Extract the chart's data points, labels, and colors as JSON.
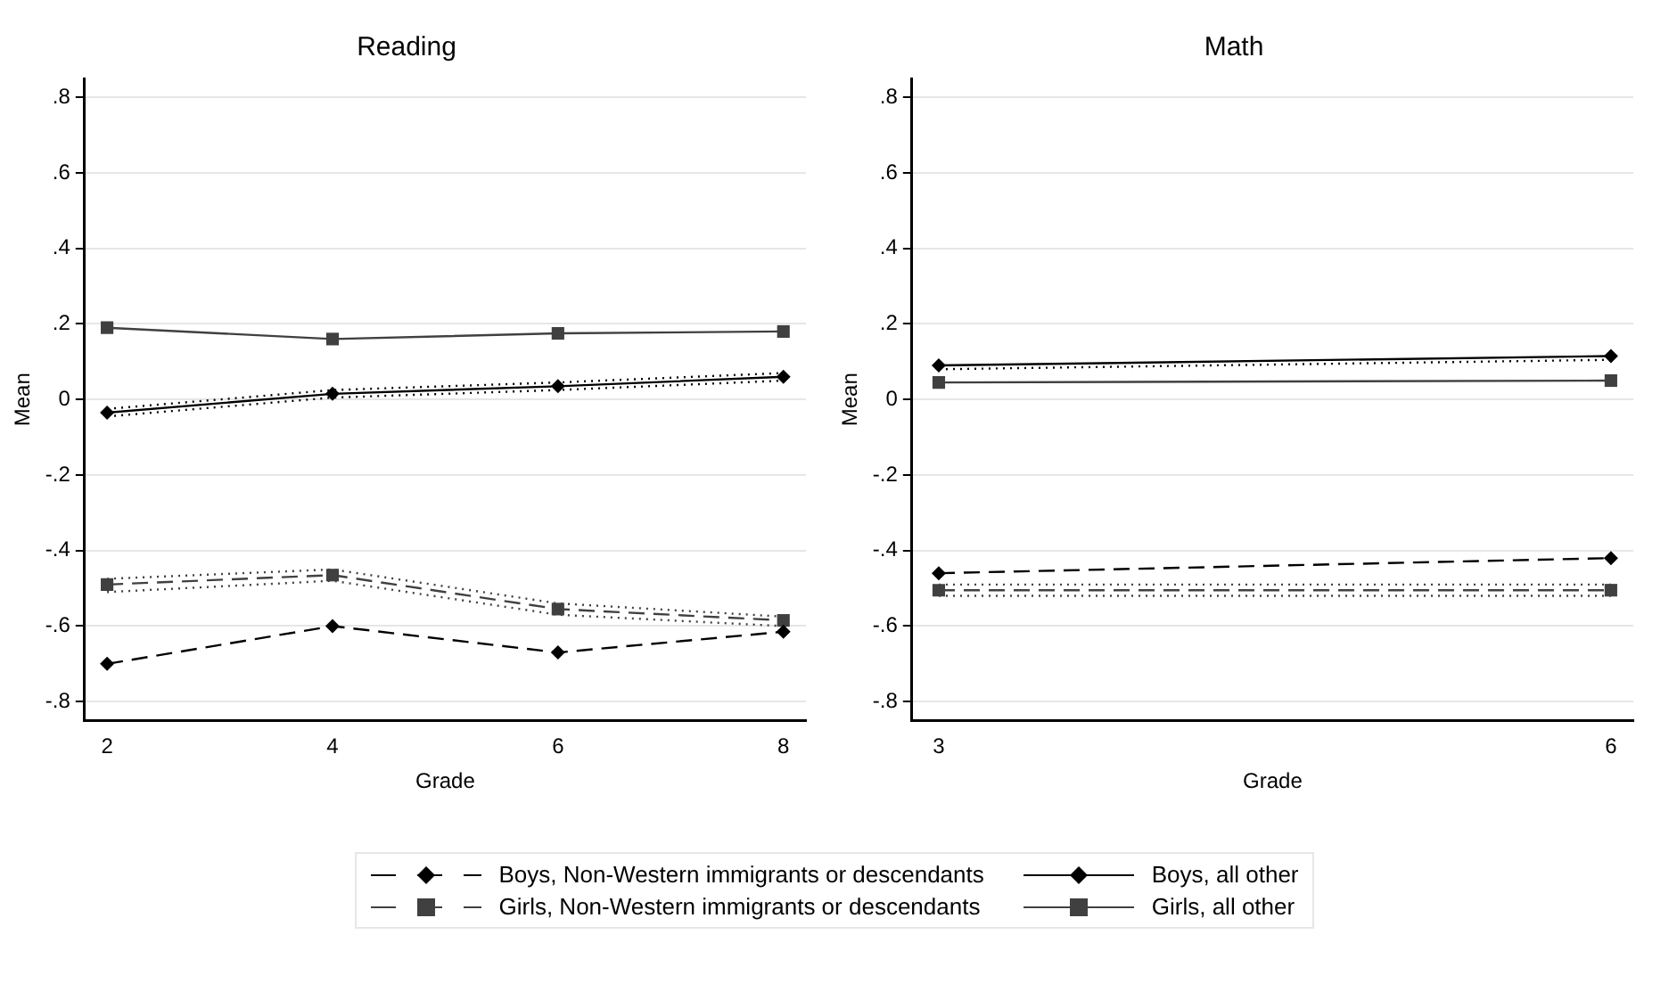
{
  "chart_data": [
    {
      "type": "line",
      "title": "Reading",
      "xlabel": "Grade",
      "ylabel": "Mean",
      "x": [
        2,
        4,
        6,
        8
      ],
      "xlim": [
        1.8,
        8.2
      ],
      "xticks": [
        2,
        4,
        6,
        8
      ],
      "ylim": [
        -0.85,
        0.85
      ],
      "yticks": [
        {
          "value": -0.8,
          "label": "-.8"
        },
        {
          "value": -0.6,
          "label": "-.6"
        },
        {
          "value": -0.4,
          "label": "-.4"
        },
        {
          "value": -0.2,
          "label": "-.2"
        },
        0,
        {
          "value": 0.2,
          "label": ".2"
        },
        {
          "value": 0.4,
          "label": ".4"
        },
        {
          "value": 0.6,
          "label": ".6"
        },
        {
          "value": 0.8,
          "label": ".8"
        }
      ],
      "grid": "y",
      "legend": "bottom",
      "series": [
        {
          "name": "Boys, Non-Western immigrants or descendants",
          "color": "#000000",
          "marker": "diamond",
          "line_style": "dashed",
          "values": [
            -0.7,
            -0.6,
            -0.67,
            -0.615
          ]
        },
        {
          "name": "Girls, Non-Western immigrants or descendants",
          "color": "#404040",
          "marker": "square",
          "line_style": "dashed",
          "values": [
            -0.49,
            -0.465,
            -0.555,
            -0.585
          ]
        },
        {
          "name": "Boys, all other",
          "color": "#000000",
          "marker": "diamond",
          "line_style": "solid",
          "values": [
            -0.035,
            0.015,
            0.035,
            0.06
          ]
        },
        {
          "name": "Girls, all other",
          "color": "#404040",
          "marker": "square",
          "line_style": "solid",
          "values": [
            0.19,
            0.16,
            0.175,
            0.18
          ]
        },
        {
          "color": "#404040",
          "marker": "none",
          "line_style": "dotted",
          "values": [
            -0.51,
            -0.48,
            -0.57,
            -0.6
          ]
        },
        {
          "color": "#404040",
          "marker": "none",
          "line_style": "dotted",
          "values": [
            -0.475,
            -0.45,
            -0.54,
            -0.575
          ]
        },
        {
          "color": "#000000",
          "marker": "none",
          "line_style": "dotted",
          "values": [
            -0.045,
            0.005,
            0.025,
            0.05
          ]
        },
        {
          "color": "#000000",
          "marker": "none",
          "line_style": "dotted",
          "values": [
            -0.025,
            0.025,
            0.045,
            0.07
          ]
        }
      ]
    },
    {
      "type": "line",
      "title": "Math",
      "xlabel": "Grade",
      "ylabel": "Mean",
      "x": [
        3,
        6
      ],
      "xlim": [
        2.88,
        6.1
      ],
      "xticks": [
        3,
        6
      ],
      "ylim": [
        -0.85,
        0.85
      ],
      "yticks": [
        {
          "value": -0.8,
          "label": "-.8"
        },
        {
          "value": -0.6,
          "label": "-.6"
        },
        {
          "value": -0.4,
          "label": "-.4"
        },
        {
          "value": -0.2,
          "label": "-.2"
        },
        0,
        {
          "value": 0.2,
          "label": ".2"
        },
        {
          "value": 0.4,
          "label": ".4"
        },
        {
          "value": 0.6,
          "label": ".6"
        },
        {
          "value": 0.8,
          "label": ".8"
        }
      ],
      "grid": "y",
      "series": [
        {
          "color": "#000000",
          "marker": "diamond",
          "line_style": "dashed",
          "values": [
            -0.46,
            -0.42
          ]
        },
        {
          "color": "#404040",
          "marker": "square",
          "line_style": "dashed",
          "values": [
            -0.505,
            -0.505
          ]
        },
        {
          "color": "#000000",
          "marker": "diamond",
          "line_style": "solid",
          "values": [
            0.09,
            0.115
          ]
        },
        {
          "color": "#404040",
          "marker": "square",
          "line_style": "solid",
          "values": [
            0.045,
            0.05
          ]
        },
        {
          "color": "#404040",
          "marker": "none",
          "line_style": "dotted",
          "values": [
            -0.52,
            -0.52
          ]
        },
        {
          "color": "#404040",
          "marker": "none",
          "line_style": "dotted",
          "values": [
            -0.49,
            -0.49
          ]
        },
        {
          "color": "#000000",
          "marker": "none",
          "line_style": "dotted",
          "values": [
            0.08,
            0.105
          ]
        }
      ]
    }
  ]
}
